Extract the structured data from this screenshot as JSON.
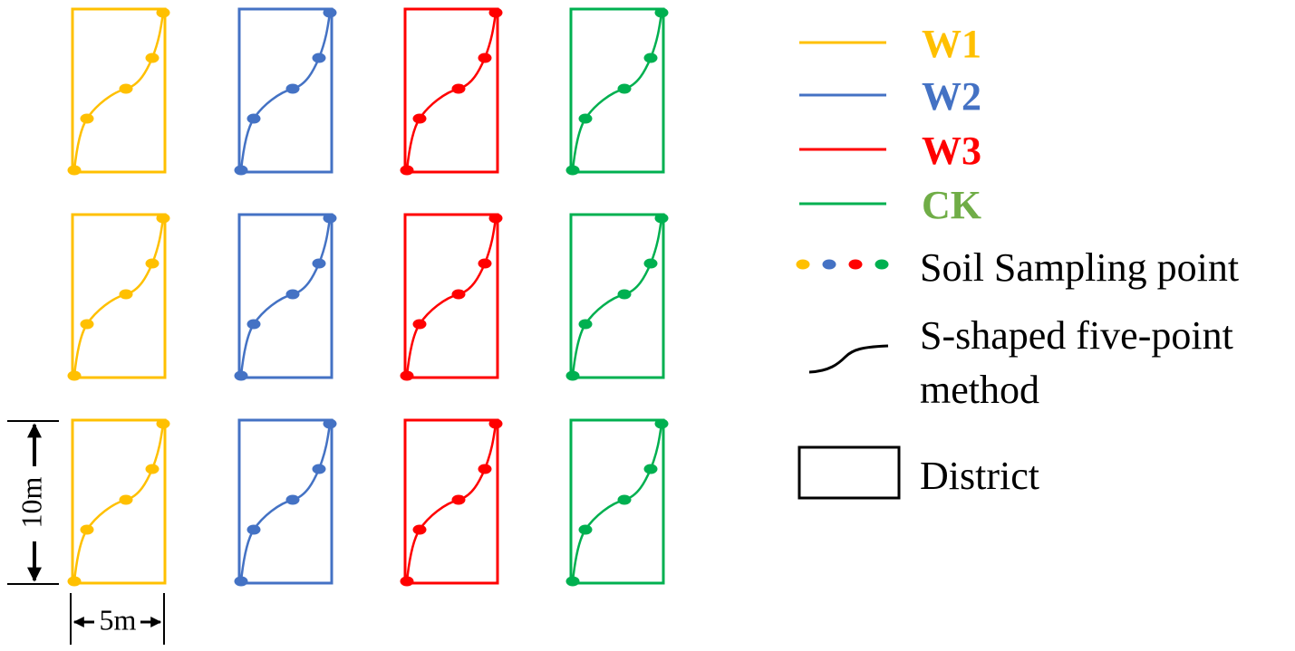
{
  "treatments": [
    {
      "id": "W1",
      "label": "W1",
      "color": "#FFC000",
      "label_color": "#FFC000"
    },
    {
      "id": "W2",
      "label": "W2",
      "color": "#4472C4",
      "label_color": "#4472C4"
    },
    {
      "id": "W3",
      "label": "W3",
      "color": "#FF0000",
      "label_color": "#FF0000"
    },
    {
      "id": "CK",
      "label": "CK",
      "color": "#00B050",
      "label_color": "#70AD47"
    }
  ],
  "grid": {
    "rows": 3,
    "columns": 4
  },
  "legend": {
    "soil_sampling": "Soil Sampling point",
    "s_shaped_line1": "S-shaped five-point",
    "s_shaped_line2": "method",
    "district": "District"
  },
  "dimensions": {
    "height_label": "10m",
    "width_label": "5m"
  }
}
